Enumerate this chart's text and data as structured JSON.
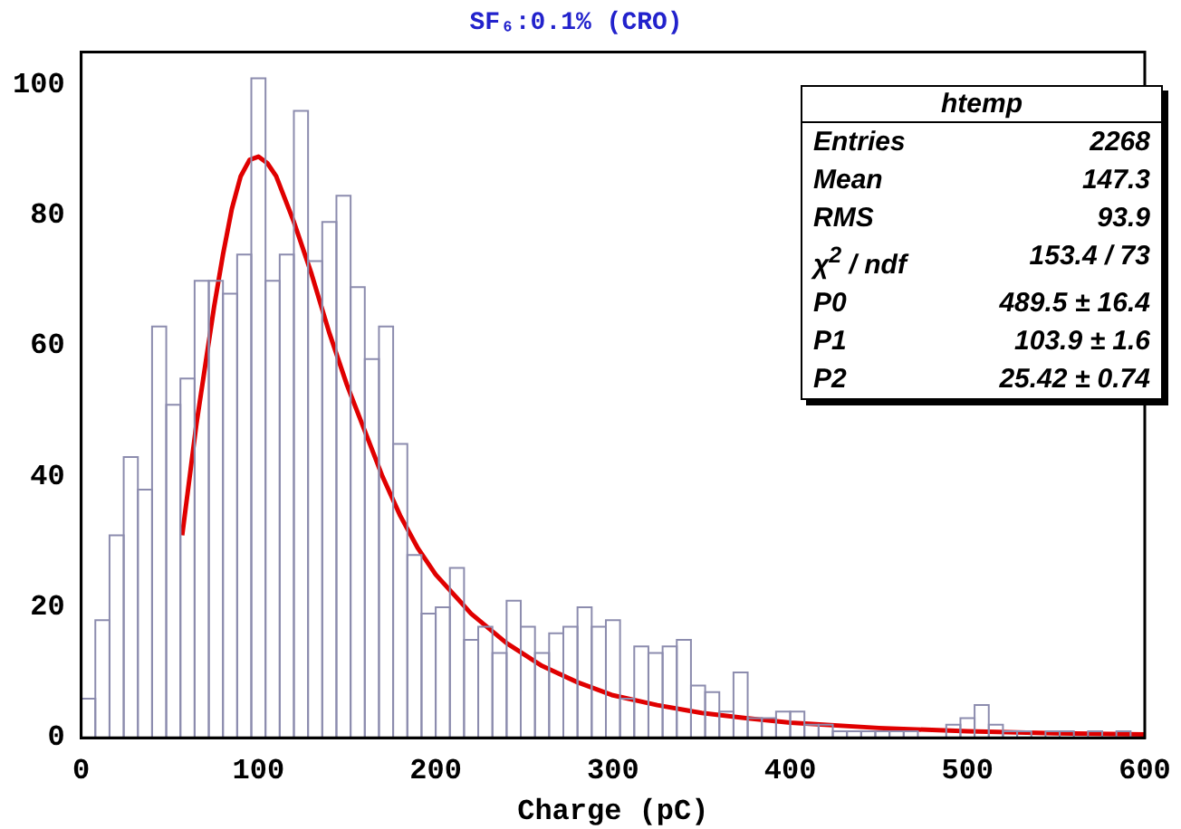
{
  "chart_data": {
    "type": "histogram",
    "title": "SF₆:0.1% (CRO)",
    "xlabel": "Charge (pC)",
    "bins": [
      0,
      8,
      16,
      24,
      32,
      40,
      48,
      56,
      64,
      72,
      80,
      88,
      96,
      104,
      112,
      120,
      128,
      136,
      144,
      152,
      160,
      168,
      176,
      184,
      192,
      200,
      208,
      216,
      224,
      232,
      240,
      248,
      256,
      264,
      272,
      280,
      288,
      296,
      304,
      312,
      320,
      328,
      336,
      344,
      352,
      360,
      368,
      376,
      384,
      392,
      400,
      408,
      416,
      424,
      432,
      440,
      448,
      456,
      464,
      472,
      480,
      488,
      496,
      504,
      512,
      520,
      528,
      536,
      544,
      552,
      560,
      568,
      576,
      584,
      592,
      600
    ],
    "values": [
      6,
      18,
      31,
      43,
      38,
      63,
      51,
      55,
      70,
      70,
      68,
      74,
      101,
      70,
      74,
      96,
      73,
      79,
      83,
      69,
      58,
      63,
      45,
      28,
      19,
      20,
      26,
      15,
      17,
      13,
      21,
      17,
      13,
      16,
      17,
      20,
      17,
      18,
      6,
      14,
      13,
      14,
      15,
      8,
      7,
      4,
      10,
      3,
      3,
      4,
      4,
      2,
      2,
      1,
      1,
      1,
      1,
      1,
      1,
      0,
      0,
      2,
      3,
      5,
      2,
      1,
      1,
      0,
      1,
      1,
      0,
      1,
      0,
      1,
      0
    ],
    "color": "#8c8cae",
    "series": [
      {
        "type": "line",
        "color": "#e00000",
        "x": [
          57,
          65,
          70,
          75,
          80,
          85,
          90,
          95,
          100,
          105,
          110,
          120,
          130,
          140,
          150,
          160,
          170,
          180,
          190,
          200,
          220,
          240,
          260,
          280,
          300,
          325,
          350,
          375,
          400,
          450,
          500,
          550,
          600
        ],
        "values": [
          31,
          48,
          57,
          66,
          74,
          81,
          86,
          88.5,
          89,
          88,
          86,
          79,
          71,
          62,
          54,
          47,
          40,
          34,
          29,
          25,
          19,
          14.5,
          11,
          8.5,
          6.5,
          5,
          3.8,
          3,
          2.3,
          1.5,
          1,
          0.7,
          0.5
        ]
      }
    ],
    "xlim": [
      0,
      600
    ],
    "ylim": [
      0,
      105
    ],
    "xticks": [
      0,
      100,
      200,
      300,
      400,
      500,
      600
    ],
    "yticks": [
      0,
      20,
      40,
      60,
      80,
      100
    ],
    "grid": false,
    "legend": false,
    "annotations": [
      "htemp",
      "Entries",
      "2268",
      "Mean",
      "147.3",
      "RMS",
      "93.9",
      "χ$^{2}$ / ndf",
      "153.4 / 73",
      "P0",
      "489.5 ± 16.4",
      "P1",
      "103.9 ± 1.6",
      "P2",
      "25.42 ± 0.74"
    ]
  }
}
